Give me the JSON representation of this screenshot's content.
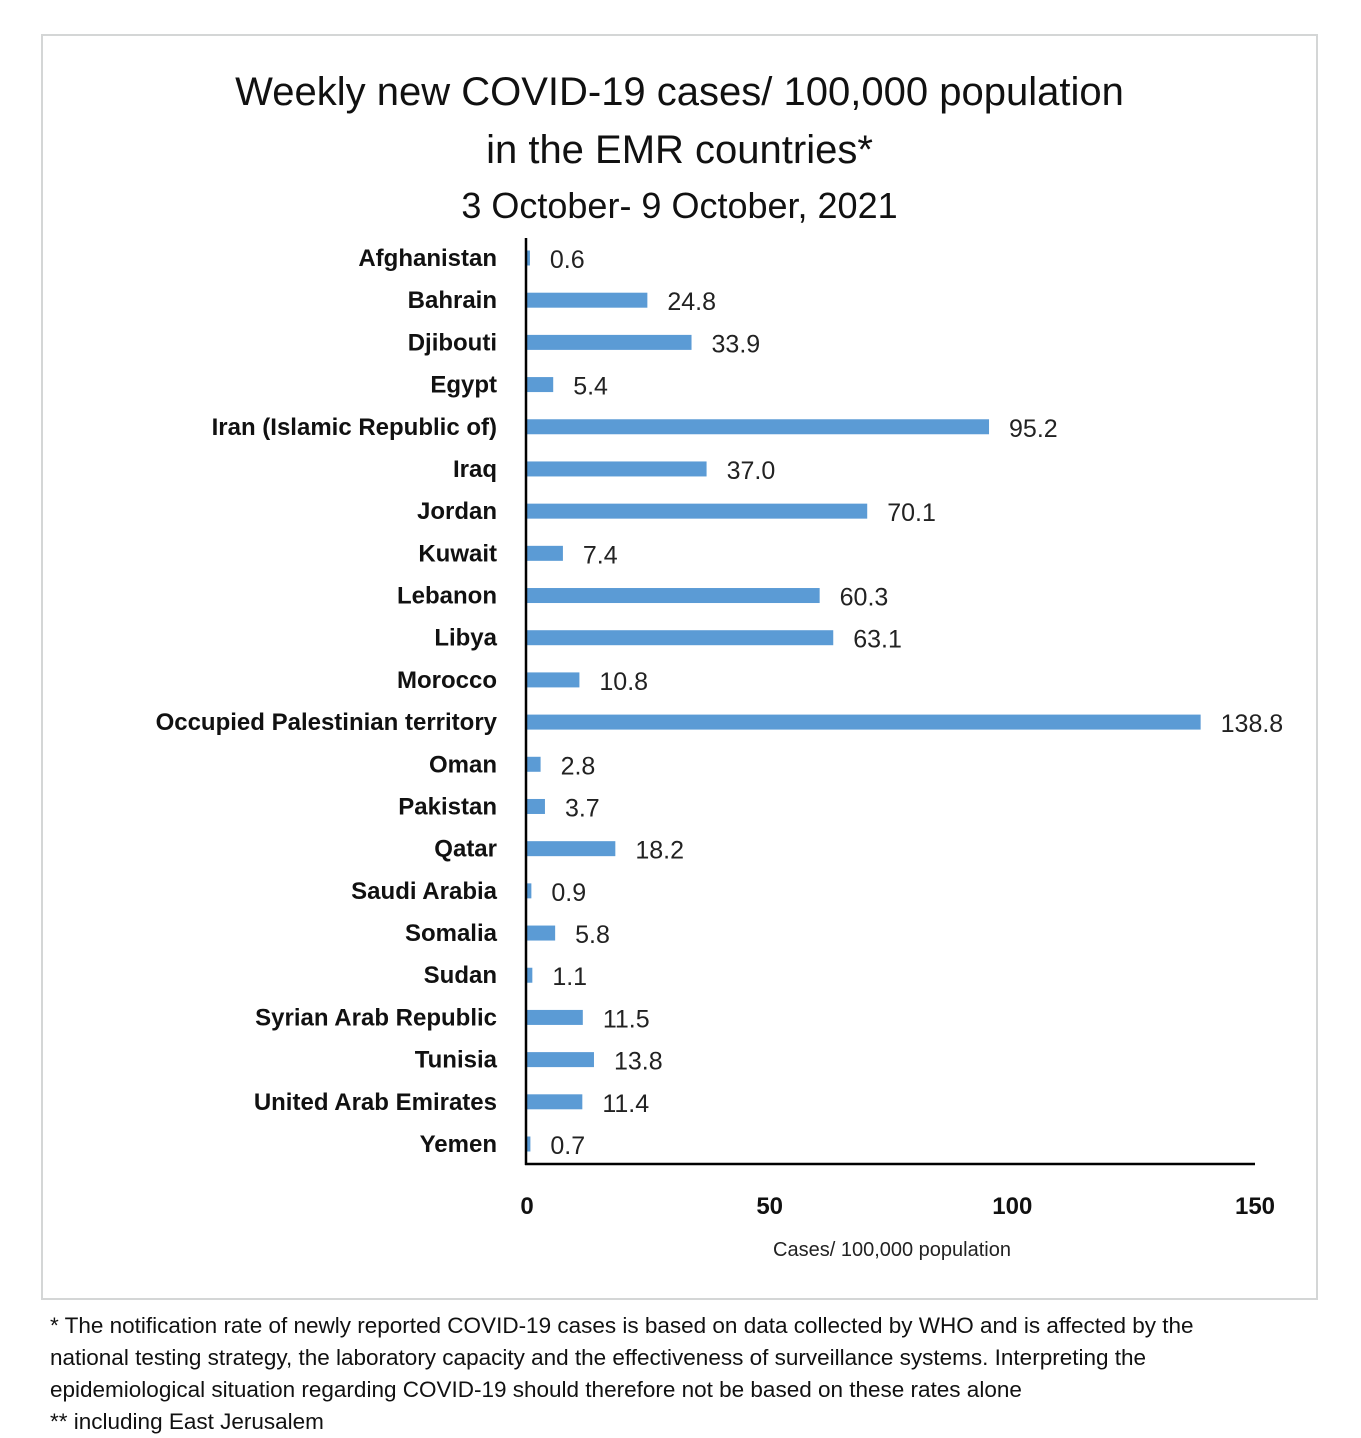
{
  "chart_data": {
    "type": "bar",
    "orientation": "horizontal",
    "title": "Weekly new COVID-19 cases/ 100,000 population",
    "title_line2": "in the EMR countries*",
    "subtitle": "3 October- 9 October, 2021",
    "xlabel": "Cases/ 100,000 population",
    "ylabel": "",
    "xlim": [
      0,
      150
    ],
    "xticks": [
      "0",
      "50",
      "100",
      "150"
    ],
    "xtick_values": [
      0,
      50,
      100,
      150
    ],
    "grid": false,
    "legend": "none",
    "bar_color": "#5b9bd5",
    "categories": [
      "Afghanistan",
      "Bahrain",
      "Djibouti",
      "Egypt",
      "Iran (Islamic Republic of)",
      "Iraq",
      "Jordan",
      "Kuwait",
      "Lebanon",
      "Libya",
      "Morocco",
      "Occupied Palestinian territory",
      "Oman",
      "Pakistan",
      "Qatar",
      "Saudi Arabia",
      "Somalia",
      "Sudan",
      "Syrian Arab Republic",
      "Tunisia",
      "United Arab Emirates",
      "Yemen"
    ],
    "values": [
      0.6,
      24.8,
      33.9,
      5.4,
      95.2,
      37.0,
      70.1,
      7.4,
      60.3,
      63.1,
      10.8,
      138.8,
      2.8,
      3.7,
      18.2,
      0.9,
      5.8,
      1.1,
      11.5,
      13.8,
      11.4,
      0.7
    ],
    "value_labels": [
      "0.6",
      "24.8",
      "33.9",
      "5.4",
      "95.2",
      "37.0",
      "70.1",
      "7.4",
      "60.3",
      "63.1",
      "10.8",
      "138.8",
      "2.8",
      "3.7",
      "18.2",
      "0.9",
      "5.8",
      "1.1",
      "11.5",
      "13.8",
      "11.4",
      "0.7"
    ]
  },
  "footnotes": {
    "line1": "* The notification rate of newly reported COVID-19 cases is based on data collected by WHO and is affected by the",
    "line2": "national testing strategy, the laboratory capacity and the effectiveness of surveillance systems. Interpreting the",
    "line3": "epidemiological situation regarding COVID-19 should therefore not be based on these rates alone",
    "line4": "** including East Jerusalem"
  }
}
